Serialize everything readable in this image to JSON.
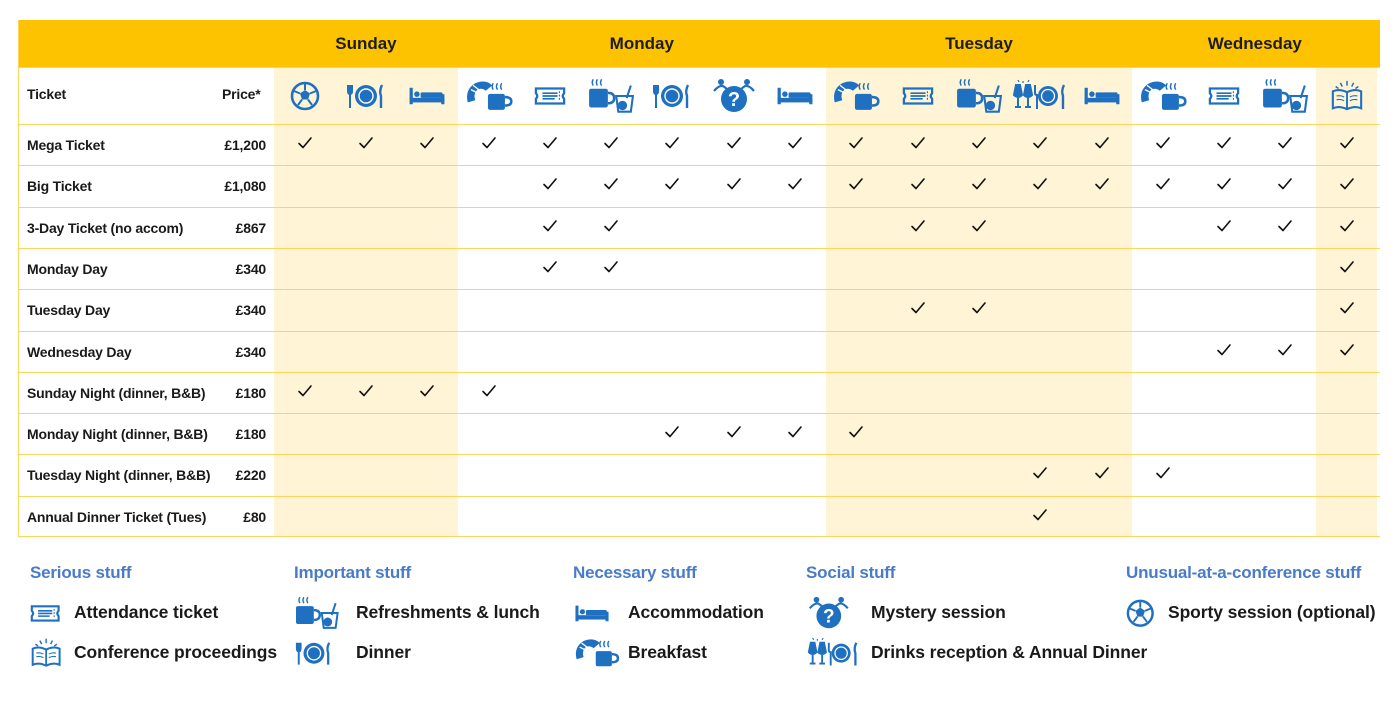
{
  "days": [
    "Sunday",
    "Monday",
    "Tuesday",
    "Wednesday"
  ],
  "header": {
    "ticket": "Ticket",
    "price": "Price*"
  },
  "columns": [
    {
      "day": "Sunday",
      "icon": "football-icon"
    },
    {
      "day": "Sunday",
      "icon": "dinner-icon"
    },
    {
      "day": "Sunday",
      "icon": "bed-icon"
    },
    {
      "day": "Monday",
      "icon": "breakfast-icon"
    },
    {
      "day": "Monday",
      "icon": "ticket-icon"
    },
    {
      "day": "Monday",
      "icon": "refreshments-icon"
    },
    {
      "day": "Monday",
      "icon": "dinner-icon"
    },
    {
      "day": "Monday",
      "icon": "mystery-icon"
    },
    {
      "day": "Monday",
      "icon": "bed-icon"
    },
    {
      "day": "Tuesday",
      "icon": "breakfast-icon"
    },
    {
      "day": "Tuesday",
      "icon": "ticket-icon"
    },
    {
      "day": "Tuesday",
      "icon": "refreshments-icon"
    },
    {
      "day": "Tuesday",
      "icon": "drinks-dinner-icon"
    },
    {
      "day": "Tuesday",
      "icon": "bed-icon"
    },
    {
      "day": "Wednesday",
      "icon": "breakfast-icon"
    },
    {
      "day": "Wednesday",
      "icon": "ticket-icon"
    },
    {
      "day": "Wednesday",
      "icon": "refreshments-icon"
    },
    {
      "day": "Wednesday",
      "icon": "proceedings-icon"
    }
  ],
  "rows": [
    {
      "ticket": "Mega Ticket",
      "price": "£1,200",
      "checks": [
        1,
        1,
        1,
        1,
        1,
        1,
        1,
        1,
        1,
        1,
        1,
        1,
        1,
        1,
        1,
        1,
        1,
        1
      ]
    },
    {
      "ticket": "Big Ticket",
      "price": "£1,080",
      "checks": [
        0,
        0,
        0,
        0,
        1,
        1,
        1,
        1,
        1,
        1,
        1,
        1,
        1,
        1,
        1,
        1,
        1,
        1
      ]
    },
    {
      "ticket": "3-Day Ticket (no accom)",
      "price": "£867",
      "checks": [
        0,
        0,
        0,
        0,
        1,
        1,
        0,
        0,
        0,
        0,
        1,
        1,
        0,
        0,
        0,
        1,
        1,
        1
      ]
    },
    {
      "ticket": "Monday Day",
      "price": "£340",
      "checks": [
        0,
        0,
        0,
        0,
        1,
        1,
        0,
        0,
        0,
        0,
        0,
        0,
        0,
        0,
        0,
        0,
        0,
        1
      ]
    },
    {
      "ticket": "Tuesday Day",
      "price": "£340",
      "checks": [
        0,
        0,
        0,
        0,
        0,
        0,
        0,
        0,
        0,
        0,
        1,
        1,
        0,
        0,
        0,
        0,
        0,
        1
      ]
    },
    {
      "ticket": "Wednesday Day",
      "price": "£340",
      "checks": [
        0,
        0,
        0,
        0,
        0,
        0,
        0,
        0,
        0,
        0,
        0,
        0,
        0,
        0,
        0,
        1,
        1,
        1
      ]
    },
    {
      "ticket": "Sunday Night (dinner, B&B)",
      "price": "£180",
      "checks": [
        1,
        1,
        1,
        1,
        0,
        0,
        0,
        0,
        0,
        0,
        0,
        0,
        0,
        0,
        0,
        0,
        0,
        0
      ]
    },
    {
      "ticket": "Monday Night (dinner, B&B)",
      "price": "£180",
      "checks": [
        0,
        0,
        0,
        0,
        0,
        0,
        1,
        1,
        1,
        1,
        0,
        0,
        0,
        0,
        0,
        0,
        0,
        0
      ]
    },
    {
      "ticket": "Tuesday Night (dinner, B&B)",
      "price": "£220",
      "checks": [
        0,
        0,
        0,
        0,
        0,
        0,
        0,
        0,
        0,
        0,
        0,
        0,
        1,
        1,
        1,
        0,
        0,
        0
      ]
    },
    {
      "ticket": "Annual Dinner Ticket (Tues)",
      "price": "£80",
      "checks": [
        0,
        0,
        0,
        0,
        0,
        0,
        0,
        0,
        0,
        0,
        0,
        0,
        1,
        0,
        0,
        0,
        0,
        0
      ]
    }
  ],
  "legend": [
    {
      "title": "Serious stuff",
      "items": [
        {
          "icon": "ticket-icon",
          "label": "Attendance ticket"
        },
        {
          "icon": "proceedings-icon",
          "label": "Conference proceedings"
        }
      ]
    },
    {
      "title": "Important stuff",
      "items": [
        {
          "icon": "refreshments-icon",
          "label": "Refreshments & lunch"
        },
        {
          "icon": "dinner-icon",
          "label": "Dinner"
        }
      ]
    },
    {
      "title": "Necessary stuff",
      "items": [
        {
          "icon": "bed-icon",
          "label": "Accommodation"
        },
        {
          "icon": "breakfast-icon",
          "label": "Breakfast"
        }
      ]
    },
    {
      "title": "Social stuff",
      "items": [
        {
          "icon": "mystery-icon",
          "label": "Mystery session"
        },
        {
          "icon": "drinks-dinner-icon",
          "label": "Drinks reception & Annual Dinner"
        }
      ]
    },
    {
      "title": "Unusual-at-a-conference stuff",
      "items": [
        {
          "icon": "football-icon",
          "label": "Sporty session (optional)"
        }
      ]
    }
  ],
  "colors": {
    "header_yellow": "#fdc300",
    "shade": "#fff4d6",
    "grid_line": "#ffd45c",
    "icon_blue": "#1f70c1",
    "legend_title_blue": "#4a7bc8"
  }
}
